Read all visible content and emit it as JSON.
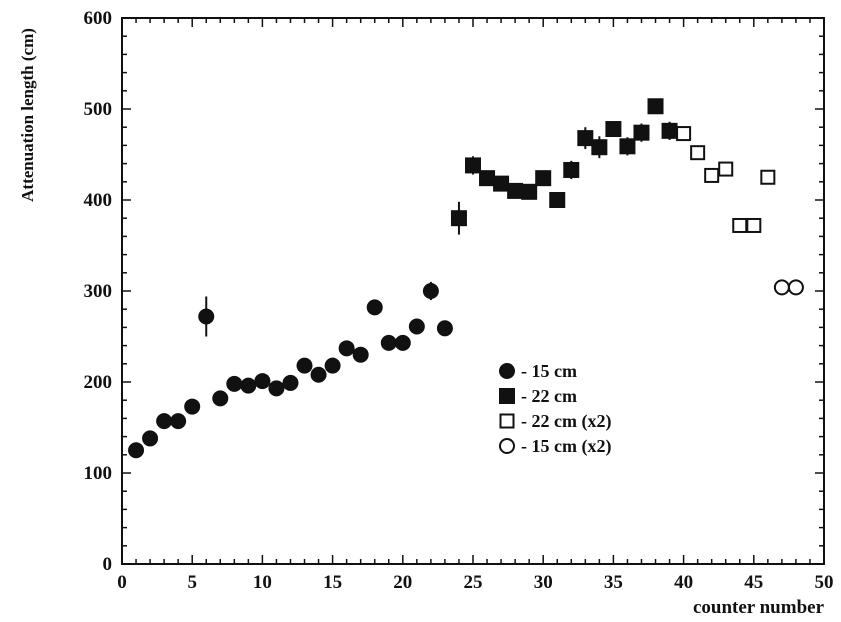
{
  "chart_data": {
    "type": "scatter",
    "xlabel": "counter number",
    "ylabel": "Attenuation length (cm)",
    "xlim": [
      0,
      50
    ],
    "ylim": [
      0,
      600
    ],
    "x_ticks": [
      0,
      5,
      10,
      15,
      20,
      25,
      30,
      35,
      40,
      45,
      50
    ],
    "y_ticks": [
      0,
      100,
      200,
      300,
      400,
      500,
      600
    ],
    "grid": false,
    "legend_position": "center-right",
    "series": [
      {
        "name": "- 15 cm",
        "marker": "filled-circle",
        "points": [
          {
            "x": 1,
            "y": 125
          },
          {
            "x": 2,
            "y": 138
          },
          {
            "x": 3,
            "y": 157
          },
          {
            "x": 4,
            "y": 157
          },
          {
            "x": 5,
            "y": 173
          },
          {
            "x": 6,
            "y": 272,
            "err": 22
          },
          {
            "x": 7,
            "y": 182
          },
          {
            "x": 8,
            "y": 198
          },
          {
            "x": 9,
            "y": 196
          },
          {
            "x": 10,
            "y": 201
          },
          {
            "x": 11,
            "y": 193
          },
          {
            "x": 12,
            "y": 199
          },
          {
            "x": 13,
            "y": 218
          },
          {
            "x": 14,
            "y": 208
          },
          {
            "x": 15,
            "y": 218
          },
          {
            "x": 16,
            "y": 237
          },
          {
            "x": 17,
            "y": 230
          },
          {
            "x": 18,
            "y": 282
          },
          {
            "x": 19,
            "y": 243
          },
          {
            "x": 20,
            "y": 243
          },
          {
            "x": 21,
            "y": 261
          },
          {
            "x": 22,
            "y": 300,
            "err": 10
          },
          {
            "x": 23,
            "y": 259
          }
        ]
      },
      {
        "name": "- 22 cm",
        "marker": "filled-square",
        "points": [
          {
            "x": 24,
            "y": 380,
            "err": 18
          },
          {
            "x": 25,
            "y": 438,
            "err": 10
          },
          {
            "x": 26,
            "y": 424
          },
          {
            "x": 27,
            "y": 418
          },
          {
            "x": 28,
            "y": 410
          },
          {
            "x": 29,
            "y": 409
          },
          {
            "x": 30,
            "y": 424
          },
          {
            "x": 31,
            "y": 400
          },
          {
            "x": 32,
            "y": 433,
            "err": 10
          },
          {
            "x": 33,
            "y": 468,
            "err": 12
          },
          {
            "x": 34,
            "y": 458,
            "err": 12
          },
          {
            "x": 35,
            "y": 478
          },
          {
            "x": 36,
            "y": 459,
            "err": 10
          },
          {
            "x": 37,
            "y": 474,
            "err": 10
          },
          {
            "x": 38,
            "y": 503
          },
          {
            "x": 39,
            "y": 476,
            "err": 10
          }
        ]
      },
      {
        "name": "- 22 cm (x2)",
        "marker": "open-square",
        "points": [
          {
            "x": 40,
            "y": 473
          },
          {
            "x": 41,
            "y": 452
          },
          {
            "x": 42,
            "y": 427
          },
          {
            "x": 43,
            "y": 434
          },
          {
            "x": 44,
            "y": 372
          },
          {
            "x": 45,
            "y": 372
          },
          {
            "x": 46,
            "y": 425
          }
        ]
      },
      {
        "name": "- 15 cm (x2)",
        "marker": "open-circle",
        "points": [
          {
            "x": 47,
            "y": 304
          },
          {
            "x": 48,
            "y": 304
          }
        ]
      }
    ]
  }
}
